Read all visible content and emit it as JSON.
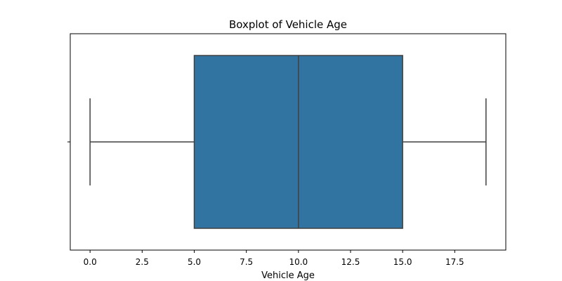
{
  "chart_data": {
    "type": "boxplot",
    "title": "Boxplot of Vehicle Age",
    "xlabel": "Vehicle Age",
    "ylabel": "",
    "orientation": "horizontal",
    "xlim": [
      -0.95,
      19.95
    ],
    "x_ticks": [
      0.0,
      2.5,
      5.0,
      7.5,
      10.0,
      12.5,
      15.0,
      17.5
    ],
    "x_tick_labels": [
      "0.0",
      "2.5",
      "5.0",
      "7.5",
      "10.0",
      "12.5",
      "15.0",
      "17.5"
    ],
    "boxes": [
      {
        "whisker_low": 0,
        "q1": 5,
        "median": 10,
        "q3": 15,
        "whisker_high": 19
      }
    ],
    "grid": false,
    "colors": {
      "box_fill": "#3274a1",
      "line": "#404040"
    }
  }
}
